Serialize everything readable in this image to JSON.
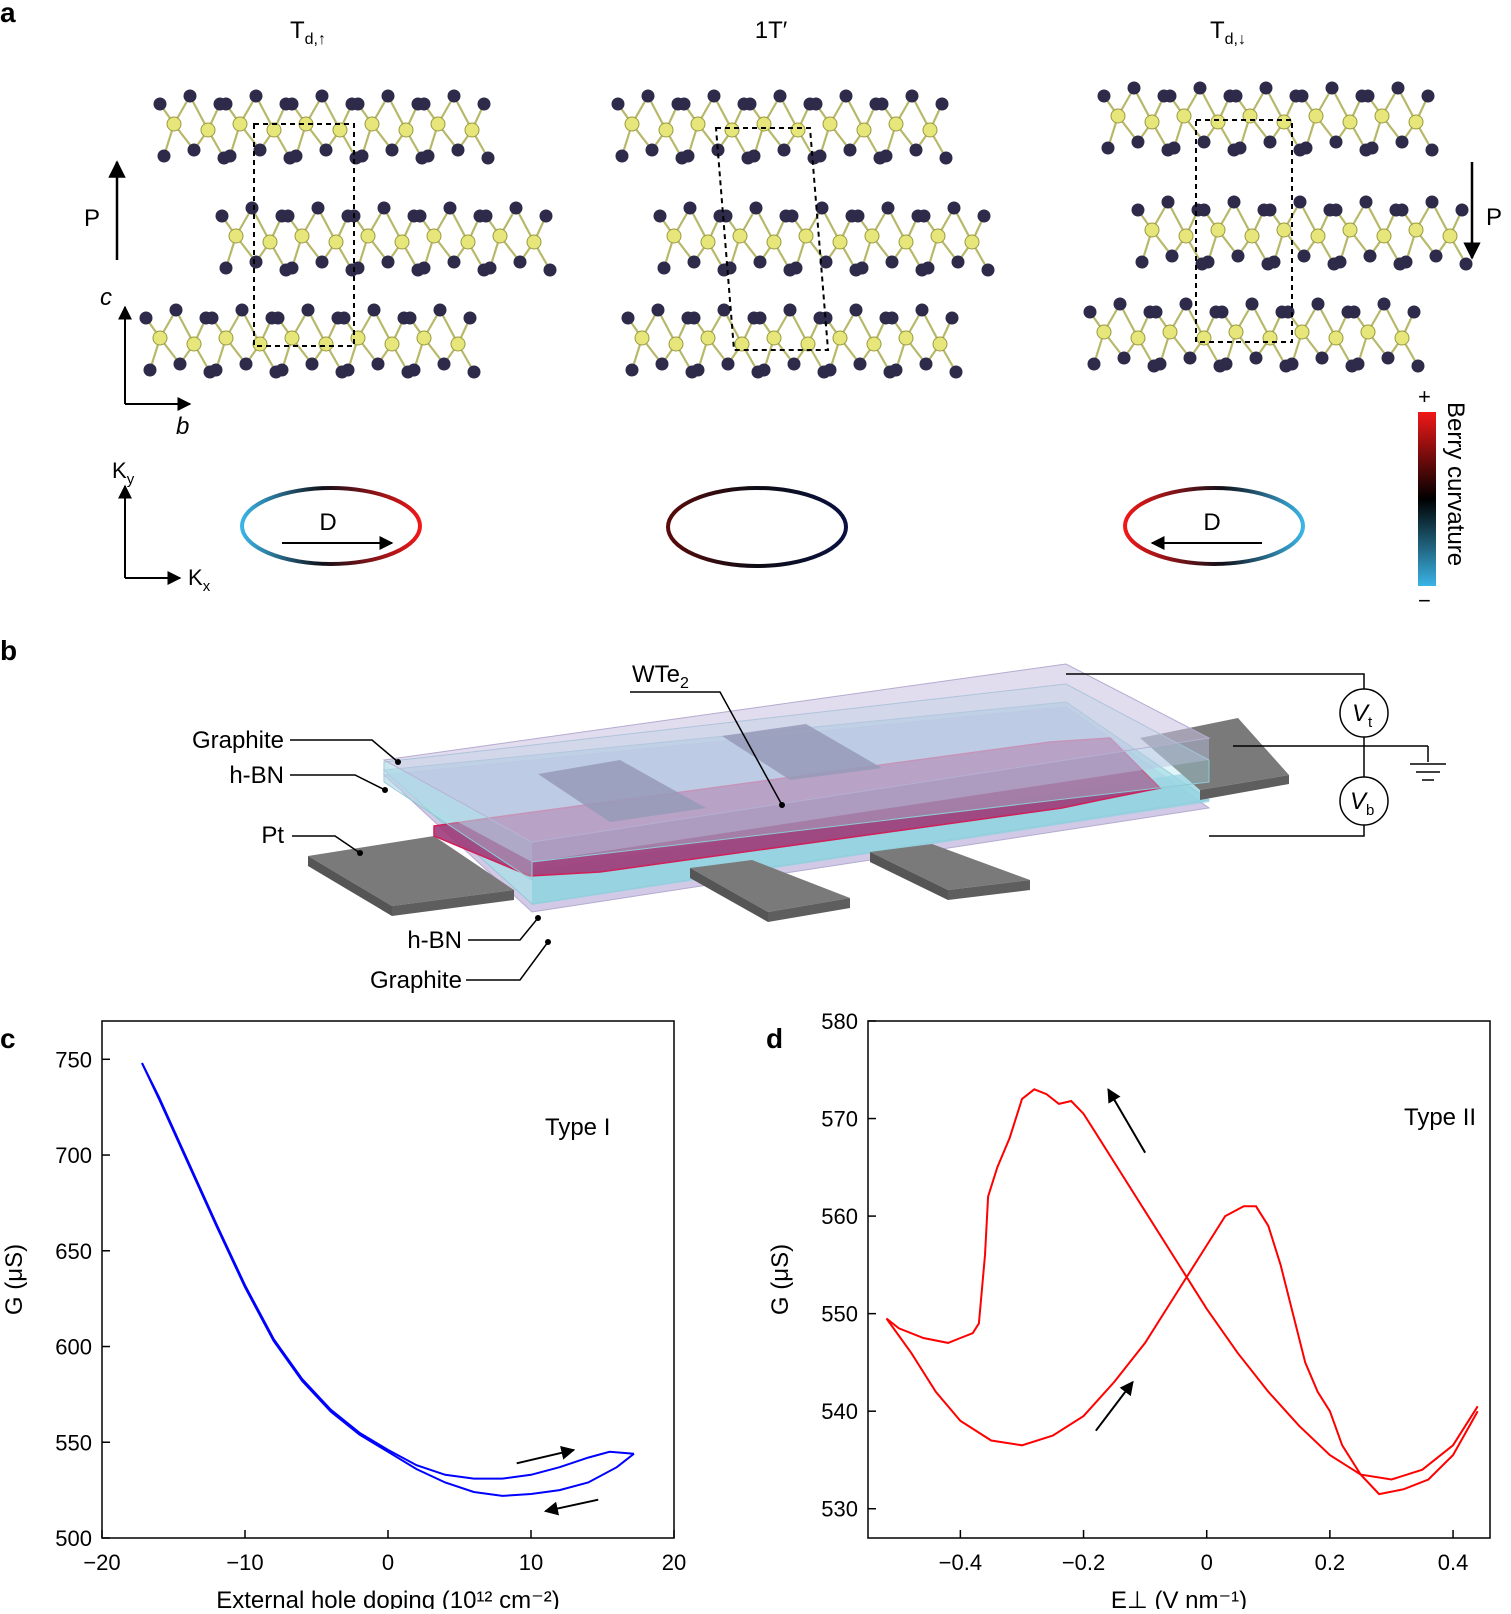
{
  "panels": {
    "a": {
      "label": "a",
      "structures": [
        {
          "main": "T",
          "sub": "d,↑"
        },
        {
          "main": "1T′",
          "sub": ""
        },
        {
          "main": "T",
          "sub": "d,↓"
        }
      ],
      "polarization_left": "P",
      "polarization_right": "P",
      "axes_real": {
        "vertical": "c",
        "horizontal": "b"
      },
      "axes_k": {
        "vertical_main": "K",
        "vertical_sub": "y",
        "horizontal_main": "K",
        "horizontal_sub": "x"
      },
      "dipole_label": "D",
      "colorbar": {
        "title": "Berry curvature",
        "plus": "+",
        "minus": "−",
        "colors": [
          "#f01818",
          "#000000",
          "#3ab4e6"
        ]
      },
      "atom_colors": {
        "metal": "#e6e67a",
        "chalcogen": "#2e2a4a"
      }
    },
    "b": {
      "label": "b",
      "labels": {
        "wte2_main": "WTe",
        "wte2_sub": "2",
        "graphite_top": "Graphite",
        "hbn_top": "h-BN",
        "pt": "Pt",
        "hbn_bottom": "h-BN",
        "graphite_bottom": "Graphite",
        "vt_main": "V",
        "vt_sub": "t",
        "vb_main": "V",
        "vb_sub": "b"
      },
      "colors": {
        "graphite": "#c9bfe0",
        "hbn": "#a9dfe8",
        "wte2": "#9e3a78",
        "pt": "#7a7a7a"
      }
    },
    "c": {
      "label": "c",
      "annotation": "Type I"
    },
    "d": {
      "label": "d",
      "annotation": "Type II"
    }
  },
  "chart_data": [
    {
      "type": "line",
      "panel": "c",
      "xlabel": "External hole doping (10¹² cm⁻²)",
      "ylabel": "G (μS)",
      "xlim": [
        -20,
        20
      ],
      "ylim": [
        500,
        770
      ],
      "xticks": [
        -20,
        -10,
        0,
        10,
        20
      ],
      "yticks": [
        500,
        550,
        600,
        650,
        700,
        750
      ],
      "color": "#0000ff",
      "series": [
        {
          "x": [
            -17.2,
            -16.0,
            -14.0,
            -12.0,
            -10.0,
            -8.0,
            -6.0,
            -4.0,
            -2.0,
            0.0,
            2.0,
            4.0,
            6.0,
            8.0,
            10.0,
            12.0,
            14.0,
            15.5,
            17.2
          ],
          "y": [
            748,
            730,
            697,
            664,
            632,
            604,
            583,
            567,
            555,
            546,
            538,
            533,
            531,
            531,
            533,
            537,
            542,
            545,
            544
          ]
        },
        {
          "x": [
            17.2,
            16.0,
            14.0,
            12.0,
            10.0,
            8.0,
            6.0,
            4.0,
            2.0,
            0.0,
            -2.0,
            -4.0,
            -6.0,
            -8.0,
            -10.0,
            -12.0,
            -14.0,
            -16.0,
            -17.2
          ],
          "y": [
            544,
            537,
            529,
            525,
            523,
            522,
            524,
            529,
            536,
            545,
            554,
            566,
            582,
            603,
            631,
            663,
            696,
            729,
            748
          ]
        }
      ],
      "arrows": [
        {
          "from": [
            9.0,
            539
          ],
          "to": [
            13.0,
            546
          ]
        },
        {
          "from": [
            14.7,
            520
          ],
          "to": [
            11.0,
            514
          ]
        }
      ]
    },
    {
      "type": "line",
      "panel": "d",
      "xlabel": "E⊥ (V nm⁻¹)",
      "ylabel": "G (μS)",
      "xlim": [
        -0.55,
        0.46
      ],
      "ylim": [
        527,
        580
      ],
      "xticks": [
        -0.4,
        -0.2,
        0,
        0.2,
        0.4
      ],
      "yticks": [
        530,
        540,
        550,
        560,
        570,
        580
      ],
      "color": "#ff0000",
      "series": [
        {
          "x": [
            -0.52,
            -0.5,
            -0.46,
            -0.42,
            -0.4,
            -0.38,
            -0.37,
            -0.36,
            -0.355,
            -0.34,
            -0.32,
            -0.3,
            -0.28,
            -0.26,
            -0.24,
            -0.22,
            -0.2,
            -0.18,
            -0.15,
            -0.1,
            -0.05,
            0.0,
            0.05,
            0.1,
            0.15,
            0.2,
            0.25,
            0.3,
            0.35,
            0.4,
            0.44
          ],
          "y": [
            549.5,
            548.5,
            547.5,
            547.0,
            547.5,
            548.0,
            549.0,
            556.0,
            562.0,
            565.0,
            568.0,
            572.0,
            573.0,
            572.5,
            571.5,
            571.8,
            570.5,
            568.5,
            565.5,
            560.5,
            555.5,
            550.5,
            546.0,
            542.0,
            538.5,
            535.5,
            533.5,
            533.0,
            534.0,
            536.5,
            540.5
          ]
        },
        {
          "x": [
            -0.52,
            -0.48,
            -0.44,
            -0.4,
            -0.35,
            -0.3,
            -0.25,
            -0.2,
            -0.15,
            -0.1,
            -0.05,
            0.0,
            0.03,
            0.06,
            0.08,
            0.1,
            0.12,
            0.14,
            0.16,
            0.18,
            0.2,
            0.22,
            0.25,
            0.28,
            0.32,
            0.36,
            0.4,
            0.44
          ],
          "y": [
            549.5,
            546.0,
            542.0,
            539.0,
            537.0,
            536.5,
            537.5,
            539.5,
            543.0,
            547.0,
            552.0,
            557.0,
            560.0,
            561.0,
            561.0,
            559.0,
            555.0,
            550.0,
            545.0,
            542.0,
            540.0,
            536.5,
            533.5,
            531.5,
            532.0,
            533.0,
            535.5,
            540.0
          ]
        }
      ],
      "arrows": [
        {
          "from": [
            -0.1,
            566.5
          ],
          "to": [
            -0.16,
            573.0
          ]
        },
        {
          "from": [
            -0.18,
            538.0
          ],
          "to": [
            -0.12,
            543.0
          ]
        }
      ]
    }
  ]
}
